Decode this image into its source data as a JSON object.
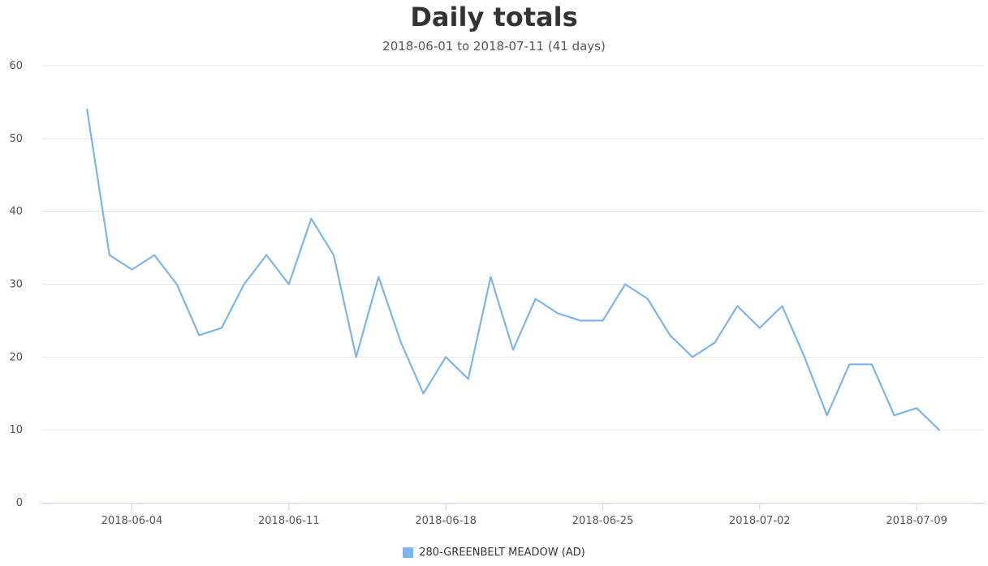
{
  "chart_data": {
    "type": "line",
    "title": "Daily totals",
    "subtitle": "2018-06-01 to 2018-07-11 (41 days)",
    "xlabel": "",
    "ylabel": "",
    "ylim": [
      0,
      60
    ],
    "y_ticks": [
      0,
      10,
      20,
      30,
      40,
      50,
      60
    ],
    "x_tick_labels": [
      "2018-06-04",
      "2018-06-11",
      "2018-06-18",
      "2018-06-25",
      "2018-07-02",
      "2018-07-09"
    ],
    "x_range": [
      "2018-05-31",
      "2018-07-12"
    ],
    "grid": "horizontal",
    "legend_position": "bottom-center",
    "x": [
      "2018-06-02",
      "2018-06-03",
      "2018-06-04",
      "2018-06-05",
      "2018-06-06",
      "2018-06-07",
      "2018-06-08",
      "2018-06-09",
      "2018-06-10",
      "2018-06-11",
      "2018-06-12",
      "2018-06-13",
      "2018-06-14",
      "2018-06-15",
      "2018-06-16",
      "2018-06-17",
      "2018-06-18",
      "2018-06-19",
      "2018-06-20",
      "2018-06-21",
      "2018-06-22",
      "2018-06-23",
      "2018-06-24",
      "2018-06-25",
      "2018-06-26",
      "2018-06-27",
      "2018-06-28",
      "2018-06-29",
      "2018-06-30",
      "2018-07-01",
      "2018-07-02",
      "2018-07-03",
      "2018-07-04",
      "2018-07-05",
      "2018-07-06",
      "2018-07-07",
      "2018-07-08",
      "2018-07-09",
      "2018-07-10"
    ],
    "series": [
      {
        "name": "280-GREENBELT MEADOW (AD)",
        "color": "#7cb5ec",
        "values": [
          54,
          34,
          32,
          34,
          30,
          23,
          24,
          30,
          34,
          30,
          39,
          34,
          20,
          31,
          22,
          15,
          20,
          17,
          31,
          21,
          28,
          26,
          25,
          25,
          30,
          28,
          23,
          20,
          22,
          27,
          24,
          27,
          20,
          12,
          19,
          19,
          12,
          13,
          10
        ]
      }
    ]
  }
}
